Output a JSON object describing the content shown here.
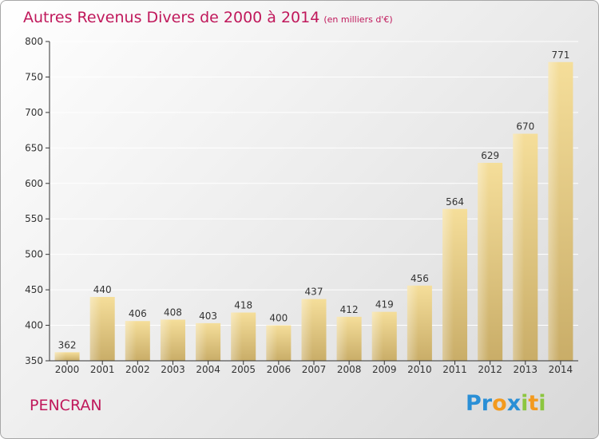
{
  "header": {
    "title": "Autres Revenus Divers de 2000 à 2014",
    "subtitle": "(en milliers d'€)"
  },
  "footer": {
    "commune": "PENCRAN",
    "logo_text": "Proxiti",
    "logo_letters": [
      {
        "char": "P",
        "color": "#2a8fd6"
      },
      {
        "char": "r",
        "color": "#2a8fd6"
      },
      {
        "char": "o",
        "color": "#f39a1e"
      },
      {
        "char": "x",
        "color": "#2a8fd6"
      },
      {
        "char": "i",
        "color": "#8cc63f"
      },
      {
        "char": "t",
        "color": "#f39a1e"
      },
      {
        "char": "i",
        "color": "#8cc63f"
      }
    ]
  },
  "colors": {
    "title": "#c0185b",
    "bar_light": "#f5de9a",
    "bar_dark": "#c9ad68",
    "axis": "#333333",
    "grid": "#ffffff"
  },
  "chart_data": {
    "type": "bar",
    "title": "Autres Revenus Divers de 2000 à 2014",
    "subtitle": "(en milliers d'€)",
    "xlabel": "",
    "ylabel": "",
    "categories": [
      "2000",
      "2001",
      "2002",
      "2003",
      "2004",
      "2005",
      "2006",
      "2007",
      "2008",
      "2009",
      "2010",
      "2011",
      "2012",
      "2013",
      "2014"
    ],
    "values": [
      362,
      440,
      406,
      408,
      403,
      418,
      400,
      437,
      412,
      419,
      456,
      564,
      629,
      670,
      771
    ],
    "data_labels": [
      "362",
      "440",
      "406",
      "408",
      "403",
      "418",
      "400",
      "437",
      "412",
      "419",
      "456",
      "564",
      "629",
      "670",
      "771"
    ],
    "ylim": [
      350,
      800
    ],
    "yticks": [
      350,
      400,
      450,
      500,
      550,
      600,
      650,
      700,
      750,
      800
    ],
    "grid": true,
    "legend": "none"
  }
}
